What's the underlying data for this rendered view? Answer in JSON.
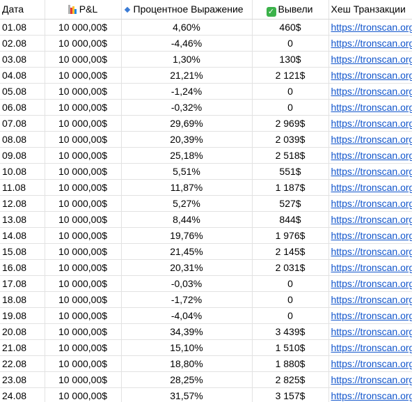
{
  "headers": {
    "date": "Дата",
    "pnl": "P&L",
    "percent": "Процентное Выражение",
    "withdrawn": "Вывели",
    "hash": "Хеш Транзакции"
  },
  "icons": {
    "pnl": "bar-chart-icon",
    "percent": "blue-diamond-icon",
    "withdrawn": "check-mark-icon"
  },
  "colors": {
    "link": "#1155cc",
    "check": "#3bb24a",
    "diamond": "#3a7bd5"
  },
  "rows": [
    {
      "date": "01.08",
      "pnl": "10 000,00$",
      "percent": "4,60%",
      "withdrawn": "460$",
      "hash": "https://tronscan.org"
    },
    {
      "date": "02.08",
      "pnl": "10 000,00$",
      "percent": "-4,46%",
      "withdrawn": "0",
      "hash": "https://tronscan.org"
    },
    {
      "date": "03.08",
      "pnl": "10 000,00$",
      "percent": "1,30%",
      "withdrawn": "130$",
      "hash": "https://tronscan.org"
    },
    {
      "date": "04.08",
      "pnl": "10 000,00$",
      "percent": "21,21%",
      "withdrawn": "2 121$",
      "hash": "https://tronscan.org"
    },
    {
      "date": "05.08",
      "pnl": "10 000,00$",
      "percent": "-1,24%",
      "withdrawn": "0",
      "hash": "https://tronscan.org"
    },
    {
      "date": "06.08",
      "pnl": "10 000,00$",
      "percent": "-0,32%",
      "withdrawn": "0",
      "hash": "https://tronscan.org"
    },
    {
      "date": "07.08",
      "pnl": "10 000,00$",
      "percent": "29,69%",
      "withdrawn": "2 969$",
      "hash": "https://tronscan.org"
    },
    {
      "date": "08.08",
      "pnl": "10 000,00$",
      "percent": "20,39%",
      "withdrawn": "2 039$",
      "hash": "https://tronscan.org"
    },
    {
      "date": "09.08",
      "pnl": "10 000,00$",
      "percent": "25,18%",
      "withdrawn": "2 518$",
      "hash": "https://tronscan.org"
    },
    {
      "date": "10.08",
      "pnl": "10 000,00$",
      "percent": "5,51%",
      "withdrawn": "551$",
      "hash": "https://tronscan.org"
    },
    {
      "date": "11.08",
      "pnl": "10 000,00$",
      "percent": "11,87%",
      "withdrawn": "1 187$",
      "hash": "https://tronscan.org"
    },
    {
      "date": "12.08",
      "pnl": "10 000,00$",
      "percent": "5,27%",
      "withdrawn": "527$",
      "hash": "https://tronscan.org"
    },
    {
      "date": "13.08",
      "pnl": "10 000,00$",
      "percent": "8,44%",
      "withdrawn": "844$",
      "hash": "https://tronscan.org"
    },
    {
      "date": "14.08",
      "pnl": "10 000,00$",
      "percent": "19,76%",
      "withdrawn": "1 976$",
      "hash": "https://tronscan.org"
    },
    {
      "date": "15.08",
      "pnl": "10 000,00$",
      "percent": "21,45%",
      "withdrawn": "2 145$",
      "hash": "https://tronscan.org"
    },
    {
      "date": "16.08",
      "pnl": "10 000,00$",
      "percent": "20,31%",
      "withdrawn": "2 031$",
      "hash": "https://tronscan.org"
    },
    {
      "date": "17.08",
      "pnl": "10 000,00$",
      "percent": "-0,03%",
      "withdrawn": "0",
      "hash": "https://tronscan.org"
    },
    {
      "date": "18.08",
      "pnl": "10 000,00$",
      "percent": "-1,72%",
      "withdrawn": "0",
      "hash": "https://tronscan.org"
    },
    {
      "date": "19.08",
      "pnl": "10 000,00$",
      "percent": "-4,04%",
      "withdrawn": "0",
      "hash": "https://tronscan.org"
    },
    {
      "date": "20.08",
      "pnl": "10 000,00$",
      "percent": "34,39%",
      "withdrawn": "3 439$",
      "hash": "https://tronscan.org"
    },
    {
      "date": "21.08",
      "pnl": "10 000,00$",
      "percent": "15,10%",
      "withdrawn": "1 510$",
      "hash": "https://tronscan.org"
    },
    {
      "date": "22.08",
      "pnl": "10 000,00$",
      "percent": "18,80%",
      "withdrawn": "1 880$",
      "hash": "https://tronscan.org"
    },
    {
      "date": "23.08",
      "pnl": "10 000,00$",
      "percent": "28,25%",
      "withdrawn": "2 825$",
      "hash": "https://tronscan.org"
    },
    {
      "date": "24.08",
      "pnl": "10 000,00$",
      "percent": "31,57%",
      "withdrawn": "3 157$",
      "hash": "https://tronscan.org"
    }
  ]
}
